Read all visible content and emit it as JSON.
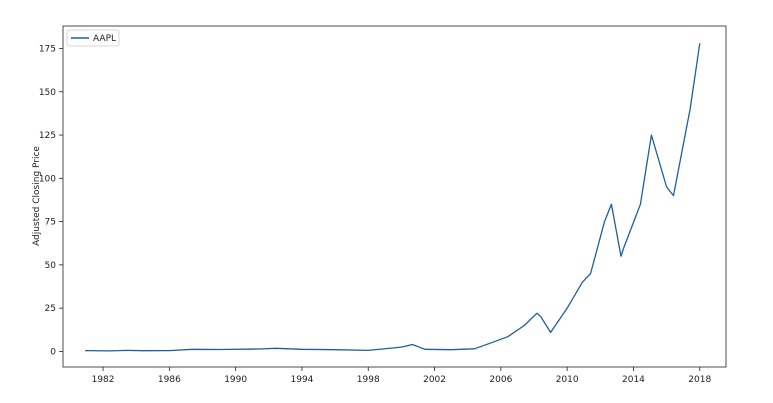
{
  "chart_data": {
    "type": "line",
    "title": "",
    "xlabel": "",
    "ylabel": "Adjusted Closing Price",
    "x_ticks": [
      "1982",
      "1986",
      "1990",
      "1994",
      "1998",
      "2002",
      "2006",
      "2010",
      "2014",
      "2018"
    ],
    "y_ticks": [
      "0",
      "25",
      "50",
      "75",
      "100",
      "125",
      "150",
      "175"
    ],
    "xlim": [
      "1979-08",
      "2019-08"
    ],
    "ylim": [
      -9,
      188
    ],
    "grid": false,
    "legend_position": "top-left",
    "series": [
      {
        "name": "AAPL",
        "color": "#1f5f9a",
        "x": [
          "1980-12",
          "1982-06",
          "1983-06",
          "1984-06",
          "1986-01",
          "1987-06",
          "1989-01",
          "1991-06",
          "1992-06",
          "1994-01",
          "1996-01",
          "1998-01",
          "2000-01",
          "2000-09",
          "2001-06",
          "2003-01",
          "2004-06",
          "2005-06",
          "2006-06",
          "2007-06",
          "2008-03",
          "2008-06",
          "2009-01",
          "2010-01",
          "2010-12",
          "2011-06",
          "2012-04",
          "2012-09",
          "2013-04",
          "2013-06",
          "2014-06",
          "2015-02",
          "2016-01",
          "2016-06",
          "2017-06",
          "2018-01"
        ],
        "y": [
          0.5,
          0.3,
          0.6,
          0.4,
          0.5,
          1.2,
          1.1,
          1.4,
          1.8,
          1.2,
          1.0,
          0.6,
          2.5,
          4.0,
          1.2,
          1.0,
          1.5,
          5.0,
          8.5,
          15.0,
          22.0,
          20.0,
          11.0,
          25.0,
          40.0,
          45.0,
          75.0,
          85.0,
          55.0,
          60.0,
          85.0,
          125.0,
          95.0,
          90.0,
          140.0,
          178.0
        ]
      }
    ]
  }
}
